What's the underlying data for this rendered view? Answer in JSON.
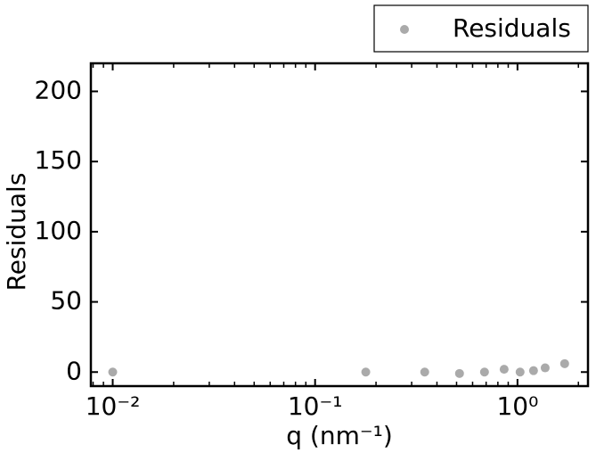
{
  "chart_data": {
    "type": "scatter",
    "xlabel": "q (nm⁻¹)",
    "ylabel": "Residuals",
    "x": [
      0.01,
      0.178,
      0.348,
      0.517,
      0.687,
      0.859,
      1.03,
      1.2,
      1.37,
      1.71
    ],
    "series": [
      {
        "name": "Residuals",
        "color": "#aaaaaa",
        "values": [
          0,
          0,
          0,
          -1,
          0,
          2,
          0,
          1,
          3,
          6
        ]
      }
    ],
    "xscale": "log",
    "xlim": [
      0.0078,
      2.23
    ],
    "ylim": [
      -10,
      220
    ],
    "xticks": [
      {
        "value": 0.01,
        "label": "10⁻²"
      },
      {
        "value": 0.1,
        "label": "10⁻¹"
      },
      {
        "value": 1,
        "label": "10⁰"
      }
    ],
    "xminorticks": [
      0.008,
      0.009,
      0.02,
      0.03,
      0.04,
      0.05,
      0.06,
      0.07,
      0.08,
      0.09,
      0.2,
      0.3,
      0.4,
      0.5,
      0.6,
      0.7,
      0.8,
      0.9,
      2
    ],
    "yticks": [
      0,
      50,
      100,
      150,
      200
    ],
    "legend": "outside-top-right"
  }
}
